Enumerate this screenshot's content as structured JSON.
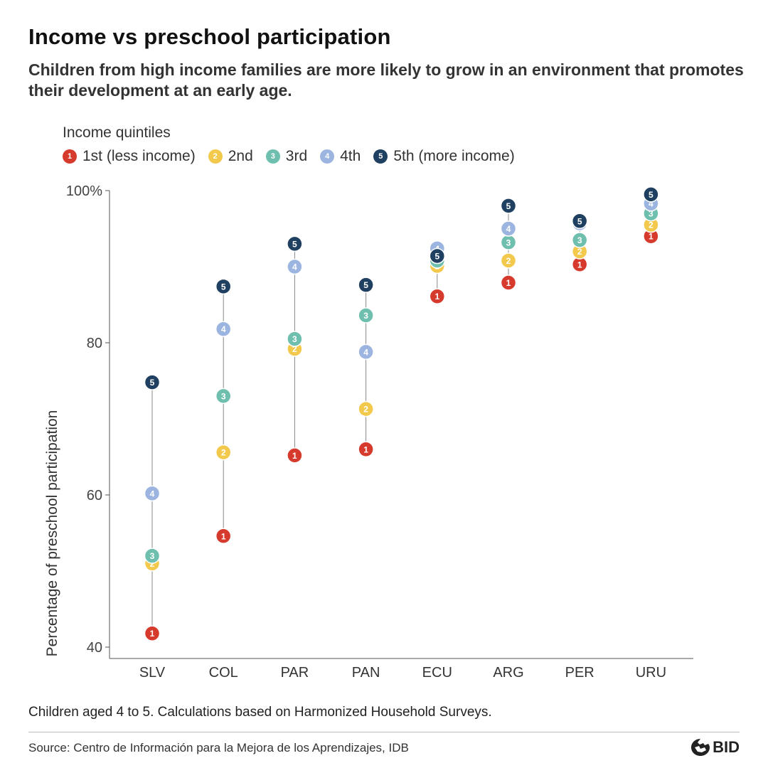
{
  "header": {
    "title": "Income vs preschool participation",
    "subtitle": "Children from high income families are more likely to grow in an environment that promotes their development at an early age."
  },
  "legend": {
    "title": "Income quintiles",
    "items": [
      {
        "number": "1",
        "label": "1st (less income)",
        "color": "#d63a2c"
      },
      {
        "number": "2",
        "label": "2nd",
        "color": "#f2c94c"
      },
      {
        "number": "3",
        "label": "3rd",
        "color": "#6fbfae"
      },
      {
        "number": "4",
        "label": "4th",
        "color": "#9bb5e0"
      },
      {
        "number": "5",
        "label": "5th (more income)",
        "color": "#1f4060"
      }
    ]
  },
  "chart_data": {
    "type": "scatter",
    "ylabel": "Percentage of preschool participation",
    "ylim": [
      40,
      100
    ],
    "yticks": [
      {
        "value": 100,
        "label": "100%"
      },
      {
        "value": 80,
        "label": "80"
      },
      {
        "value": 60,
        "label": "60"
      },
      {
        "value": 40,
        "label": "40"
      }
    ],
    "categories": [
      "SLV",
      "COL",
      "PAR",
      "PAN",
      "ECU",
      "ARG",
      "PER",
      "URU"
    ],
    "series": [
      {
        "name": "1st (less income)",
        "marker": "1",
        "color": "#d63a2c",
        "values": [
          41.8,
          54.6,
          65.2,
          66.0,
          86.1,
          87.9,
          90.3,
          94.0
        ]
      },
      {
        "name": "2nd",
        "marker": "2",
        "color": "#f2c94c",
        "values": [
          51.0,
          65.6,
          79.2,
          71.3,
          90.1,
          90.8,
          92.0,
          95.5
        ]
      },
      {
        "name": "3rd",
        "marker": "3",
        "color": "#6fbfae",
        "values": [
          52.0,
          73.0,
          80.5,
          83.6,
          90.8,
          93.2,
          93.5,
          97.0
        ]
      },
      {
        "name": "4th",
        "marker": "4",
        "color": "#9bb5e0",
        "values": [
          60.2,
          81.8,
          90.0,
          78.8,
          92.4,
          95.0,
          95.7,
          98.3
        ]
      },
      {
        "name": "5th (more income)",
        "marker": "5",
        "color": "#1f4060",
        "values": [
          74.8,
          87.4,
          93.0,
          87.6,
          91.4,
          98.0,
          96.0,
          99.5
        ]
      }
    ],
    "grid": false,
    "legend_position": "top-left"
  },
  "footer": {
    "note": "Children aged 4 to 5. Calculations based on Harmonized Household Surveys.",
    "source": "Source: Centro de Información para la Mejora de los Aprendizajes, IDB",
    "logo_text": "BID"
  }
}
